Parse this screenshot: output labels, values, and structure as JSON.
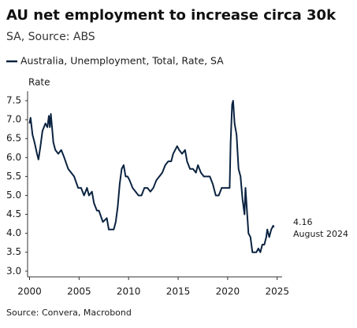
{
  "chart_data": {
    "type": "line",
    "title": "AU net employment to increase circa 30k",
    "subtitle": "SA, Source: ABS",
    "y_label": "Rate",
    "source": "Source: Convera, Macrobond",
    "annotation": {
      "value": 4.16,
      "label": "August 2024"
    },
    "xlim": [
      1999.8,
      2025.5
    ],
    "ylim": [
      2.85,
      7.75
    ],
    "xticks": [
      2000,
      2005,
      2010,
      2015,
      2020,
      2025
    ],
    "yticks": [
      {
        "value": 3.0,
        "label": "3.0"
      },
      3.5,
      {
        "value": 4.0,
        "label": "4.0"
      },
      4.5,
      {
        "value": 5.0,
        "label": "5.0"
      },
      5.5,
      {
        "value": 6.0,
        "label": "6.0"
      },
      6.5,
      {
        "value": 7.0,
        "label": "7.0"
      },
      7.5
    ],
    "x": [
      2000.0,
      2000.1,
      2000.3,
      2000.5,
      2000.75,
      2000.9,
      2001.1,
      2001.3,
      2001.6,
      2001.8,
      2001.95,
      2002.05,
      2002.15,
      2002.4,
      2002.6,
      2002.9,
      2003.2,
      2003.5,
      2003.9,
      2004.2,
      2004.5,
      2004.9,
      2005.2,
      2005.5,
      2005.8,
      2006.0,
      2006.3,
      2006.5,
      2006.8,
      2007.0,
      2007.4,
      2007.8,
      2008.0,
      2008.2,
      2008.5,
      2008.7,
      2008.9,
      2009.1,
      2009.3,
      2009.5,
      2009.7,
      2009.9,
      2010.1,
      2010.4,
      2010.7,
      2011.0,
      2011.3,
      2011.6,
      2011.9,
      2012.2,
      2012.5,
      2012.8,
      2013.1,
      2013.4,
      2013.7,
      2014.0,
      2014.3,
      2014.5,
      2014.7,
      2014.9,
      2015.1,
      2015.4,
      2015.7,
      2015.9,
      2016.2,
      2016.5,
      2016.8,
      2017.0,
      2017.3,
      2017.6,
      2017.9,
      2018.2,
      2018.5,
      2018.8,
      2019.1,
      2019.4,
      2019.7,
      2020.0,
      2020.2,
      2020.3,
      2020.45,
      2020.55,
      2020.7,
      2020.9,
      2021.1,
      2021.3,
      2021.5,
      2021.7,
      2021.8,
      2021.95,
      2022.1,
      2022.3,
      2022.5,
      2022.7,
      2022.9,
      2023.1,
      2023.3,
      2023.5,
      2023.7,
      2023.9,
      2024.0,
      2024.2,
      2024.4,
      2024.6,
      2024.67
    ],
    "series": [
      {
        "name": "Australia, Unemployment, Total, Rate, SA",
        "color": "#0b2341",
        "values": [
          6.9,
          7.05,
          6.6,
          6.4,
          6.1,
          5.95,
          6.3,
          6.7,
          6.9,
          6.8,
          7.1,
          6.8,
          7.15,
          6.4,
          6.2,
          6.1,
          6.2,
          6.0,
          5.7,
          5.6,
          5.5,
          5.2,
          5.2,
          5.0,
          5.2,
          5.0,
          5.1,
          4.8,
          4.6,
          4.6,
          4.3,
          4.4,
          4.1,
          4.1,
          4.1,
          4.3,
          4.7,
          5.3,
          5.7,
          5.8,
          5.5,
          5.5,
          5.4,
          5.2,
          5.1,
          5.0,
          5.0,
          5.2,
          5.2,
          5.1,
          5.2,
          5.4,
          5.5,
          5.6,
          5.8,
          5.9,
          5.9,
          6.1,
          6.2,
          6.3,
          6.2,
          6.1,
          6.2,
          5.9,
          5.7,
          5.7,
          5.6,
          5.8,
          5.6,
          5.5,
          5.5,
          5.5,
          5.3,
          5.0,
          5.0,
          5.2,
          5.2,
          5.2,
          5.2,
          6.4,
          7.4,
          7.5,
          6.9,
          6.6,
          5.7,
          5.5,
          4.9,
          4.5,
          5.2,
          4.6,
          4.0,
          3.9,
          3.5,
          3.5,
          3.5,
          3.6,
          3.5,
          3.7,
          3.7,
          3.9,
          4.1,
          3.9,
          4.1,
          4.2,
          4.16
        ]
      }
    ]
  }
}
